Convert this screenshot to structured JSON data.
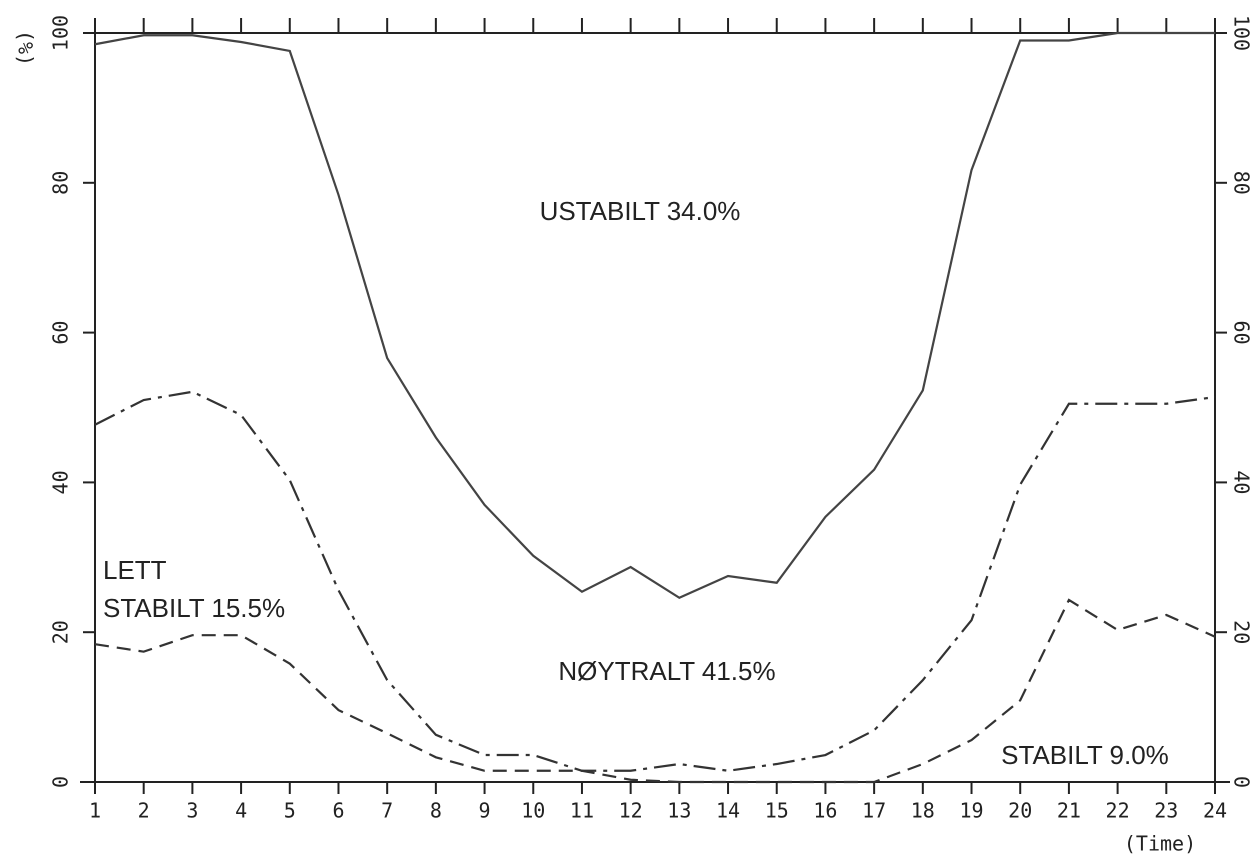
{
  "chart_data": {
    "type": "line",
    "y_label": "(%)",
    "x_label": "(Time)",
    "annotations": [
      "USTABILT 34.0%",
      "LETT",
      "STABILT 15.5%",
      "NØYTRALT 41.5%",
      "STABILT 9.0%"
    ],
    "x": [
      1,
      2,
      3,
      4,
      5,
      6,
      7,
      8,
      9,
      10,
      11,
      12,
      13,
      14,
      15,
      16,
      17,
      18,
      19,
      20,
      21,
      22,
      23,
      24
    ],
    "xlim": [
      1,
      24
    ],
    "xticks": [
      1,
      2,
      3,
      4,
      5,
      6,
      7,
      8,
      9,
      10,
      11,
      12,
      13,
      14,
      15,
      16,
      17,
      18,
      19,
      20,
      21,
      22,
      23,
      24
    ],
    "ylim": [
      0,
      100
    ],
    "yticks": [
      0,
      20,
      40,
      60,
      80,
      100
    ],
    "series": [
      {
        "style": "solid",
        "color": "#444",
        "values": [
          98.5,
          99.7,
          99.7,
          98.8,
          97.6,
          78.4,
          56.6,
          46,
          37,
          30.2,
          25.4,
          28.7,
          24.6,
          27.5,
          26.6,
          35.4,
          41.7,
          52.3,
          81.7,
          99,
          99,
          100,
          100,
          100
        ]
      },
      {
        "style": "dashdot",
        "color": "#333",
        "values": [
          47.7,
          51,
          52.1,
          49,
          40.3,
          25.6,
          13.6,
          6.3,
          3.6,
          3.6,
          1.5,
          1.5,
          2.4,
          1.5,
          2.4,
          3.6,
          6.9,
          13.6,
          21.6,
          39.7,
          50.5,
          50.5,
          50.5,
          51.4
        ]
      },
      {
        "style": "dashed",
        "color": "#333",
        "values": [
          18.4,
          17.4,
          19.6,
          19.6,
          15.8,
          9.6,
          6.5,
          3.3,
          1.5,
          1.5,
          1.5,
          0.3,
          0,
          0,
          0,
          0,
          0,
          2.4,
          5.6,
          10.9,
          24.3,
          20.3,
          22.3,
          19.4
        ]
      }
    ]
  }
}
